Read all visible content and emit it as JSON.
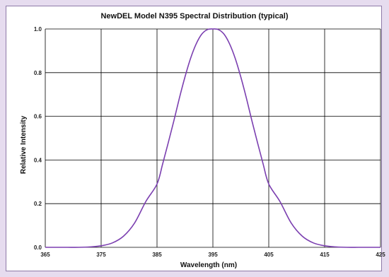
{
  "colors": {
    "background": "#e6dcef",
    "frame_border": "#8e7aa8",
    "grid": "#000000",
    "curve": "#7b3fb0"
  },
  "chart_data": {
    "type": "line",
    "title": "NewDEL Model N395 Spectral Distribution (typical)",
    "xlabel": "Wavelength (nm)",
    "ylabel": "Relative Intensity",
    "xlim": [
      365,
      425
    ],
    "ylim": [
      0.0,
      1.0
    ],
    "x_ticks": [
      365,
      375,
      385,
      395,
      405,
      415,
      425
    ],
    "y_ticks": [
      0.0,
      0.2,
      0.4,
      0.6,
      0.8,
      1.0
    ],
    "x_tick_labels": [
      "365",
      "375",
      "385",
      "395",
      "405",
      "415",
      "425"
    ],
    "y_tick_labels": [
      "0.0",
      "0.2",
      "0.4",
      "0.6",
      "0.8",
      "1.0"
    ],
    "grid": true,
    "legend": "none",
    "series": [
      {
        "x": [
          365,
          367,
          369,
          371,
          373,
          375,
          377,
          379,
          381,
          383,
          385,
          386,
          387,
          388,
          389,
          390,
          391,
          392,
          393,
          394,
          395,
          396,
          397,
          398,
          399,
          400,
          401,
          402,
          403,
          404,
          405,
          407,
          409,
          411,
          413,
          415,
          417,
          419,
          421,
          423,
          425
        ],
        "y": [
          0.0,
          0.0,
          0.0,
          0.0,
          0.002,
          0.007,
          0.02,
          0.051,
          0.112,
          0.21,
          0.29,
          0.381,
          0.478,
          0.578,
          0.683,
          0.78,
          0.865,
          0.931,
          0.976,
          0.997,
          1.0,
          0.997,
          0.976,
          0.931,
          0.865,
          0.78,
          0.683,
          0.578,
          0.478,
          0.381,
          0.29,
          0.21,
          0.112,
          0.051,
          0.02,
          0.007,
          0.002,
          0.0,
          0.0,
          0.0,
          0.0
        ]
      }
    ]
  }
}
